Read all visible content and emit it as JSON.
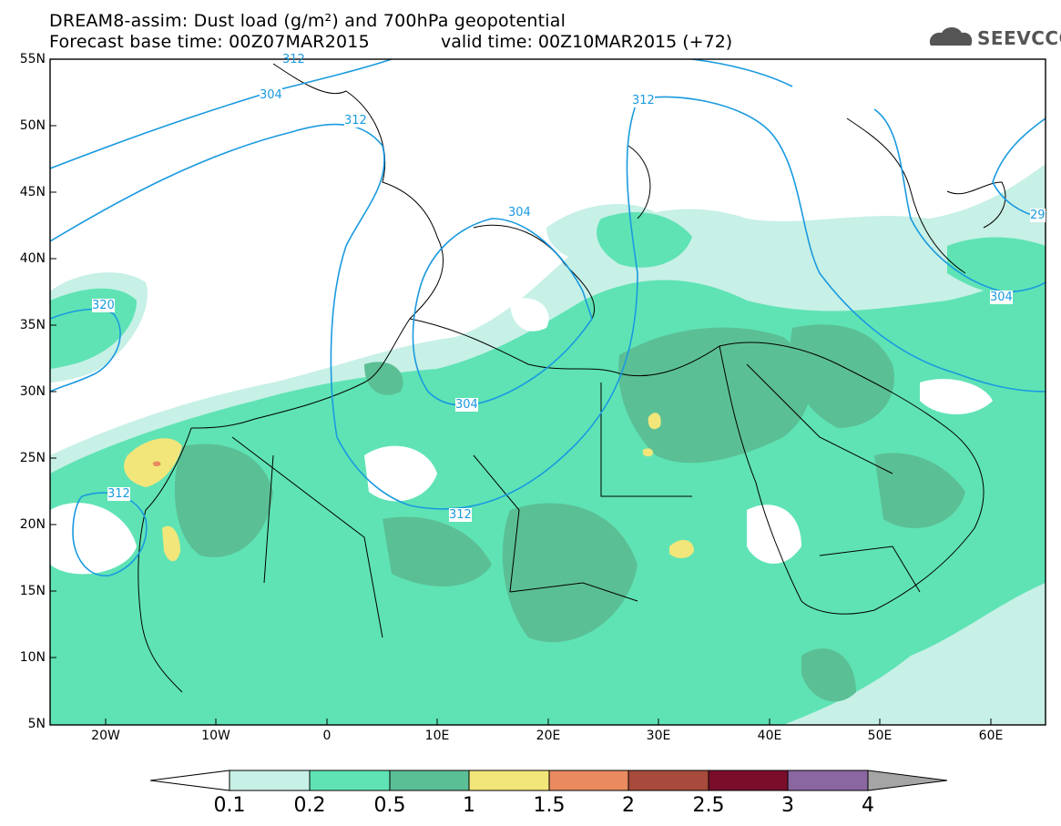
{
  "header": {
    "title_line1": "DREAM8-assim: Dust load (g/m²) and 700hPa geopotential",
    "title_line2": "Forecast base time: 00Z07MAR2015",
    "title_line2b": "valid time: 00Z10MAR2015 (+72)",
    "logo_text": "SEEVCCC"
  },
  "axes": {
    "lat_labels": [
      "55N",
      "50N",
      "45N",
      "40N",
      "35N",
      "30N",
      "25N",
      "20N",
      "15N",
      "10N",
      "5N"
    ],
    "lon_labels": [
      "20W",
      "10W",
      "0",
      "10E",
      "20E",
      "30E",
      "40E",
      "50E",
      "60E"
    ]
  },
  "contours": {
    "labels": [
      "304",
      "312",
      "320",
      "312",
      "304",
      "312",
      "312",
      "304",
      "312",
      "29",
      "304"
    ]
  },
  "colorbar": {
    "labels": [
      "0.1",
      "0.2",
      "0.5",
      "1",
      "1.5",
      "2",
      "2.5",
      "3",
      "4"
    ],
    "colors": [
      "#c7f0e6",
      "#5fe3b4",
      "#5bbf95",
      "#f2e67a",
      "#e98a5f",
      "#a84a3c",
      "#7a0e2a",
      "#8a67a0",
      "#a5a5a5"
    ]
  },
  "colors": {
    "dust_01": "#c7f0e6",
    "dust_02": "#5fe3b4",
    "dust_05": "#5bbf95",
    "dust_1": "#f2e67a",
    "dust_15": "#e98a5f",
    "contour": "#1a9ae0"
  }
}
